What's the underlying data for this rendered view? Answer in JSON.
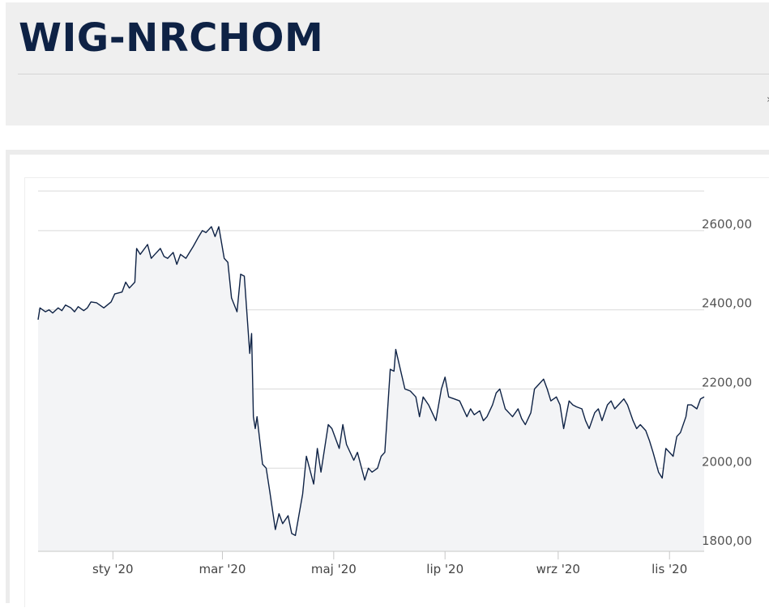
{
  "page": {
    "title": "WIG-NRCHOM",
    "edge_glyph": "›"
  },
  "colors": {
    "title": "#0e2245",
    "line": "#0e2245",
    "area": "#f3f4f6",
    "grid": "#d9d9d9"
  },
  "chart_data": {
    "type": "area",
    "title": "",
    "xlabel": "",
    "ylabel": "",
    "ylim": [
      1790,
      2700
    ],
    "grid": true,
    "legend": "none",
    "y_ticks": [
      {
        "value": 1800,
        "label": "1800,00"
      },
      {
        "value": 2000,
        "label": "2000,00"
      },
      {
        "value": 2200,
        "label": "2200,00"
      },
      {
        "value": 2400,
        "label": "2400,00"
      },
      {
        "value": 2600,
        "label": "2600,00"
      }
    ],
    "x_ticks": [
      {
        "date": "2020-01-01",
        "label": "sty '20"
      },
      {
        "date": "2020-03-01",
        "label": "mar '20"
      },
      {
        "date": "2020-05-01",
        "label": "maj '20"
      },
      {
        "date": "2020-07-01",
        "label": "lip '20"
      },
      {
        "date": "2020-09-01",
        "label": "wrz '20"
      },
      {
        "date": "2020-11-01",
        "label": "lis '20"
      }
    ],
    "series": [
      {
        "points": [
          [
            "2019-11-21",
            2375
          ],
          [
            "2019-11-22",
            2405
          ],
          [
            "2019-11-25",
            2395
          ],
          [
            "2019-11-27",
            2400
          ],
          [
            "2019-11-29",
            2392
          ],
          [
            "2019-12-02",
            2405
          ],
          [
            "2019-12-04",
            2398
          ],
          [
            "2019-12-06",
            2412
          ],
          [
            "2019-12-09",
            2405
          ],
          [
            "2019-12-11",
            2395
          ],
          [
            "2019-12-13",
            2408
          ],
          [
            "2019-12-16",
            2398
          ],
          [
            "2019-12-18",
            2405
          ],
          [
            "2019-12-20",
            2420
          ],
          [
            "2019-12-23",
            2418
          ],
          [
            "2019-12-27",
            2405
          ],
          [
            "2019-12-31",
            2420
          ],
          [
            "2020-01-02",
            2440
          ],
          [
            "2020-01-06",
            2445
          ],
          [
            "2020-01-08",
            2470
          ],
          [
            "2020-01-10",
            2455
          ],
          [
            "2020-01-13",
            2470
          ],
          [
            "2020-01-14",
            2555
          ],
          [
            "2020-01-16",
            2540
          ],
          [
            "2020-01-20",
            2565
          ],
          [
            "2020-01-22",
            2530
          ],
          [
            "2020-01-24",
            2540
          ],
          [
            "2020-01-27",
            2555
          ],
          [
            "2020-01-29",
            2535
          ],
          [
            "2020-01-31",
            2530
          ],
          [
            "2020-02-03",
            2545
          ],
          [
            "2020-02-05",
            2515
          ],
          [
            "2020-02-07",
            2540
          ],
          [
            "2020-02-10",
            2530
          ],
          [
            "2020-02-12",
            2545
          ],
          [
            "2020-02-14",
            2560
          ],
          [
            "2020-02-17",
            2585
          ],
          [
            "2020-02-19",
            2600
          ],
          [
            "2020-02-21",
            2595
          ],
          [
            "2020-02-24",
            2610
          ],
          [
            "2020-02-26",
            2585
          ],
          [
            "2020-02-28",
            2610
          ],
          [
            "2020-03-02",
            2530
          ],
          [
            "2020-03-04",
            2520
          ],
          [
            "2020-03-06",
            2430
          ],
          [
            "2020-03-09",
            2395
          ],
          [
            "2020-03-11",
            2490
          ],
          [
            "2020-03-13",
            2485
          ],
          [
            "2020-03-16",
            2290
          ],
          [
            "2020-03-17",
            2340
          ],
          [
            "2020-03-18",
            2130
          ],
          [
            "2020-03-19",
            2100
          ],
          [
            "2020-03-20",
            2130
          ],
          [
            "2020-03-23",
            2010
          ],
          [
            "2020-03-25",
            2000
          ],
          [
            "2020-03-27",
            1940
          ],
          [
            "2020-03-30",
            1845
          ],
          [
            "2020-04-01",
            1885
          ],
          [
            "2020-04-03",
            1860
          ],
          [
            "2020-04-06",
            1880
          ],
          [
            "2020-04-08",
            1835
          ],
          [
            "2020-04-10",
            1830
          ],
          [
            "2020-04-14",
            1935
          ],
          [
            "2020-04-16",
            2030
          ],
          [
            "2020-04-20",
            1960
          ],
          [
            "2020-04-22",
            2050
          ],
          [
            "2020-04-24",
            1990
          ],
          [
            "2020-04-28",
            2110
          ],
          [
            "2020-04-30",
            2100
          ],
          [
            "2020-05-04",
            2050
          ],
          [
            "2020-05-06",
            2110
          ],
          [
            "2020-05-08",
            2060
          ],
          [
            "2020-05-12",
            2020
          ],
          [
            "2020-05-14",
            2040
          ],
          [
            "2020-05-18",
            1970
          ],
          [
            "2020-05-20",
            2000
          ],
          [
            "2020-05-22",
            1990
          ],
          [
            "2020-05-25",
            2000
          ],
          [
            "2020-05-27",
            2030
          ],
          [
            "2020-05-29",
            2040
          ],
          [
            "2020-06-01",
            2250
          ],
          [
            "2020-06-03",
            2245
          ],
          [
            "2020-06-04",
            2300
          ],
          [
            "2020-06-06",
            2260
          ],
          [
            "2020-06-09",
            2200
          ],
          [
            "2020-06-12",
            2195
          ],
          [
            "2020-06-15",
            2180
          ],
          [
            "2020-06-17",
            2130
          ],
          [
            "2020-06-19",
            2180
          ],
          [
            "2020-06-22",
            2160
          ],
          [
            "2020-06-24",
            2140
          ],
          [
            "2020-06-26",
            2120
          ],
          [
            "2020-06-29",
            2200
          ],
          [
            "2020-07-01",
            2230
          ],
          [
            "2020-07-03",
            2180
          ],
          [
            "2020-07-06",
            2175
          ],
          [
            "2020-07-09",
            2170
          ],
          [
            "2020-07-13",
            2130
          ],
          [
            "2020-07-15",
            2150
          ],
          [
            "2020-07-17",
            2135
          ],
          [
            "2020-07-20",
            2145
          ],
          [
            "2020-07-22",
            2120
          ],
          [
            "2020-07-24",
            2130
          ],
          [
            "2020-07-27",
            2160
          ],
          [
            "2020-07-29",
            2190
          ],
          [
            "2020-07-31",
            2200
          ],
          [
            "2020-08-03",
            2150
          ],
          [
            "2020-08-05",
            2140
          ],
          [
            "2020-08-07",
            2130
          ],
          [
            "2020-08-10",
            2150
          ],
          [
            "2020-08-12",
            2125
          ],
          [
            "2020-08-14",
            2110
          ],
          [
            "2020-08-17",
            2140
          ],
          [
            "2020-08-19",
            2200
          ],
          [
            "2020-08-21",
            2210
          ],
          [
            "2020-08-24",
            2225
          ],
          [
            "2020-08-26",
            2200
          ],
          [
            "2020-08-28",
            2170
          ],
          [
            "2020-08-31",
            2180
          ],
          [
            "2020-09-02",
            2160
          ],
          [
            "2020-09-04",
            2100
          ],
          [
            "2020-09-07",
            2170
          ],
          [
            "2020-09-09",
            2160
          ],
          [
            "2020-09-11",
            2155
          ],
          [
            "2020-09-14",
            2150
          ],
          [
            "2020-09-16",
            2120
          ],
          [
            "2020-09-18",
            2100
          ],
          [
            "2020-09-21",
            2140
          ],
          [
            "2020-09-23",
            2150
          ],
          [
            "2020-09-25",
            2120
          ],
          [
            "2020-09-28",
            2160
          ],
          [
            "2020-09-30",
            2170
          ],
          [
            "2020-10-02",
            2150
          ],
          [
            "2020-10-05",
            2165
          ],
          [
            "2020-10-07",
            2175
          ],
          [
            "2020-10-09",
            2160
          ],
          [
            "2020-10-12",
            2120
          ],
          [
            "2020-10-14",
            2100
          ],
          [
            "2020-10-16",
            2110
          ],
          [
            "2020-10-19",
            2095
          ],
          [
            "2020-10-21",
            2070
          ],
          [
            "2020-10-23",
            2040
          ],
          [
            "2020-10-26",
            1990
          ],
          [
            "2020-10-28",
            1975
          ],
          [
            "2020-10-30",
            2050
          ],
          [
            "2020-11-03",
            2030
          ],
          [
            "2020-11-05",
            2080
          ],
          [
            "2020-11-07",
            2090
          ],
          [
            "2020-11-10",
            2130
          ],
          [
            "2020-11-11",
            2160
          ],
          [
            "2020-11-13",
            2160
          ],
          [
            "2020-11-16",
            2150
          ],
          [
            "2020-11-18",
            2175
          ],
          [
            "2020-11-20",
            2180
          ]
        ]
      }
    ]
  }
}
